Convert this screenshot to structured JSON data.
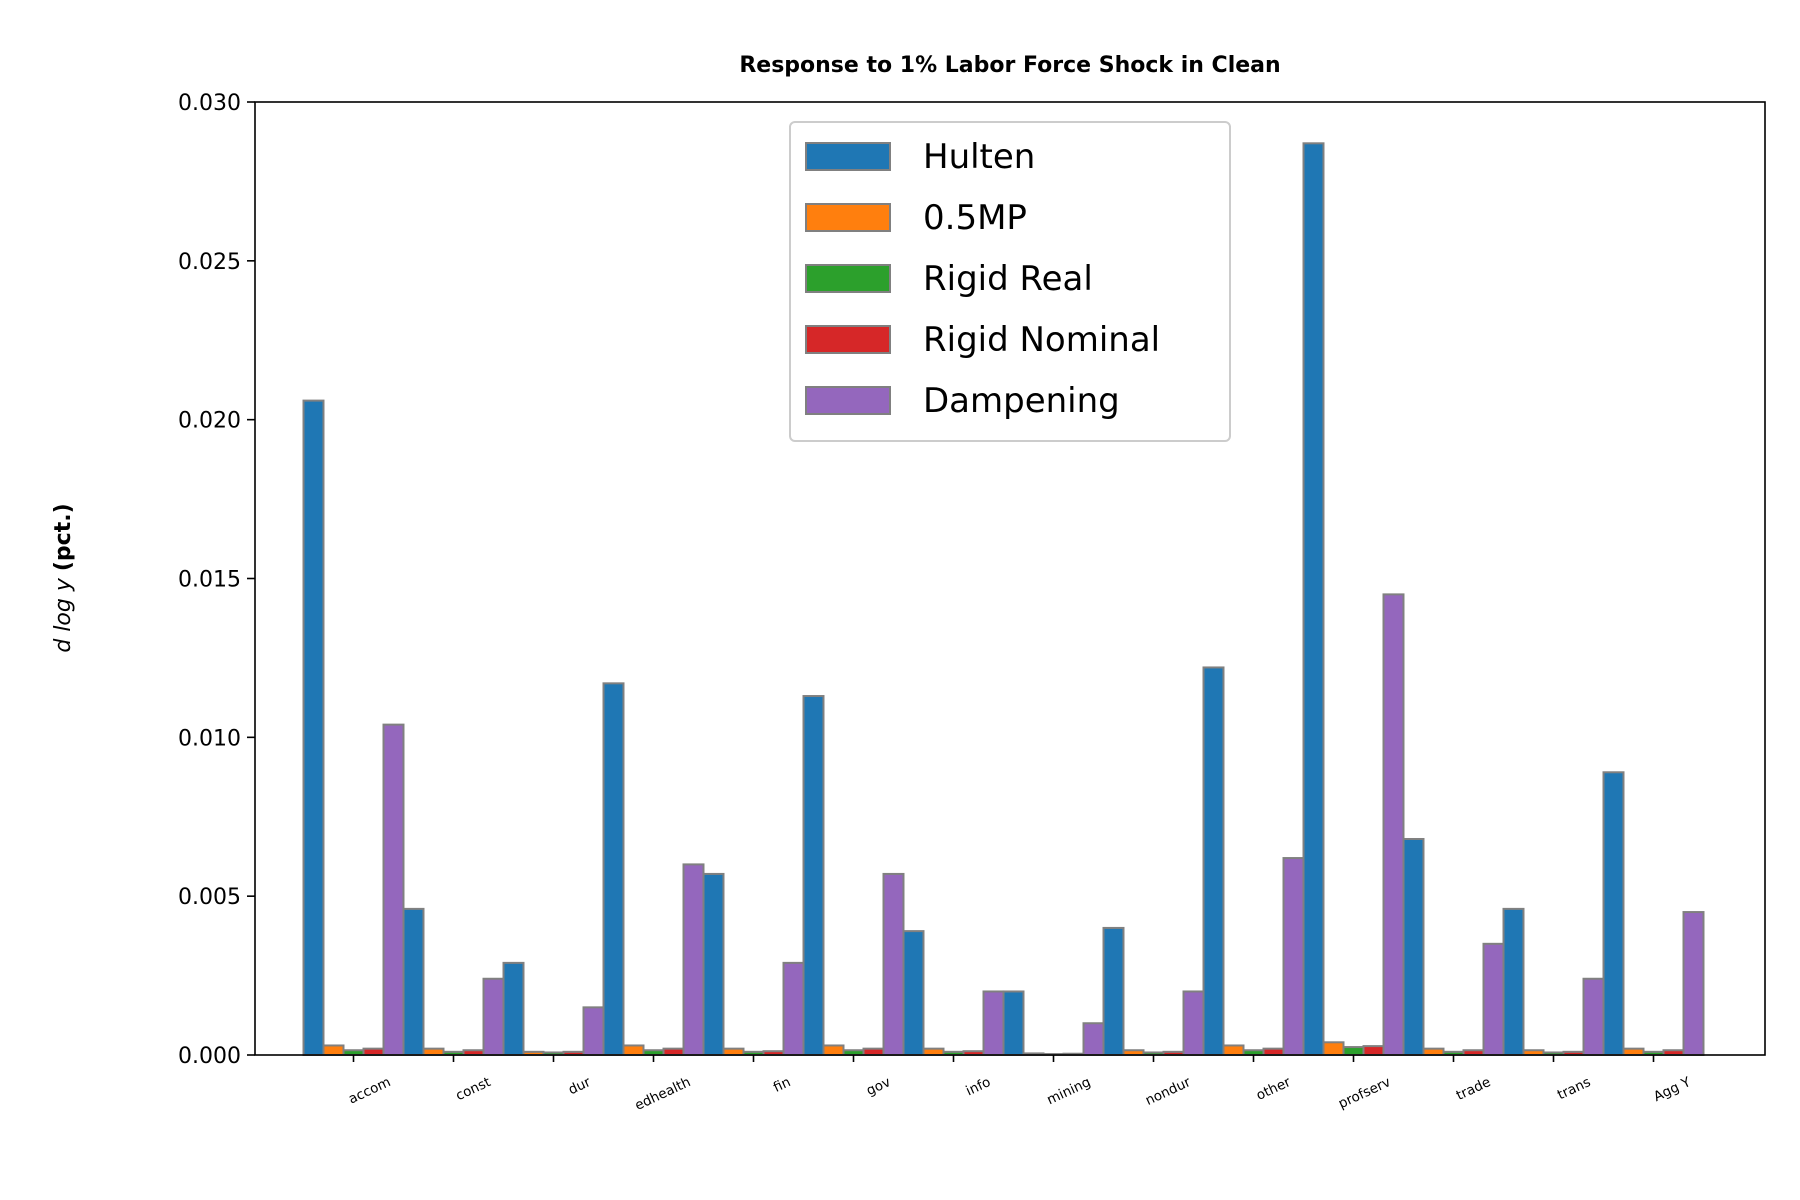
{
  "chart_data": {
    "type": "bar",
    "title": "Response to 1% Labor Force Shock in Clean",
    "xlabel": "",
    "ylabel": {
      "math": "d log y",
      "bold": "(pct.)"
    },
    "ylim": [
      0,
      0.03
    ],
    "yticks": [
      "0.000",
      "0.005",
      "0.010",
      "0.015",
      "0.020",
      "0.025",
      "0.030"
    ],
    "grid": false,
    "legend_position": "upper-center",
    "edge_color": "#808080",
    "categories": [
      "accom",
      "const",
      "dur",
      "edhealth",
      "fin",
      "gov",
      "info",
      "mining",
      "nondur",
      "other",
      "profserv",
      "trade",
      "trans",
      "Agg Y"
    ],
    "series": [
      {
        "name": "Hulten",
        "color": "#1f77b4",
        "values": [
          0.0206,
          0.0046,
          0.0029,
          0.0117,
          0.0057,
          0.0113,
          0.0039,
          0.002,
          0.004,
          0.0122,
          0.0287,
          0.0068,
          0.0046,
          0.0089
        ]
      },
      {
        "name": "0.5MP",
        "color": "#ff7f0e",
        "values": [
          0.0003,
          0.0002,
          0.0001,
          0.0003,
          0.0002,
          0.0003,
          0.0002,
          5e-05,
          0.00015,
          0.0003,
          0.0004,
          0.0002,
          0.00015,
          0.0002
        ]
      },
      {
        "name": "Rigid Real",
        "color": "#2ca02c",
        "values": [
          0.00015,
          0.0001,
          8e-05,
          0.00015,
          0.0001,
          0.00015,
          0.0001,
          3e-05,
          8e-05,
          0.00015,
          0.00025,
          0.0001,
          8e-05,
          0.0001
        ]
      },
      {
        "name": "Rigid Nominal",
        "color": "#d62728",
        "values": [
          0.0002,
          0.00015,
          0.0001,
          0.0002,
          0.00012,
          0.0002,
          0.00012,
          4e-05,
          0.0001,
          0.0002,
          0.00028,
          0.00015,
          0.0001,
          0.00015
        ]
      },
      {
        "name": "Dampening",
        "color": "#9467bd",
        "values": [
          0.0104,
          0.0024,
          0.0015,
          0.006,
          0.0029,
          0.0057,
          0.002,
          0.001,
          0.002,
          0.0062,
          0.0145,
          0.0035,
          0.0024,
          0.0045
        ]
      }
    ]
  }
}
